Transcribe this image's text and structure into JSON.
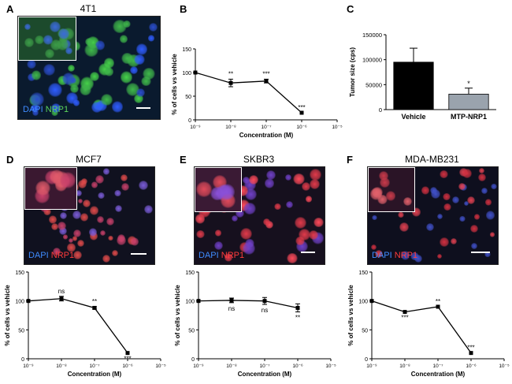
{
  "panels": {
    "A": {
      "letter": "A",
      "title": "4T1",
      "legend": [
        "DAPI",
        "NRP1"
      ],
      "legend_colors": [
        "#3f8cff",
        "#5cd65c"
      ]
    },
    "B": {
      "letter": "B"
    },
    "C": {
      "letter": "C"
    },
    "D": {
      "letter": "D",
      "title": "MCF7",
      "legend": [
        "DAPI",
        "NRP1"
      ],
      "legend_colors": [
        "#3f8cff",
        "#ff3b3b"
      ]
    },
    "E": {
      "letter": "E",
      "title": "SKBR3",
      "legend": [
        "DAPI",
        "NRP1"
      ],
      "legend_colors": [
        "#3f8cff",
        "#ff3b3b"
      ]
    },
    "F": {
      "letter": "F",
      "title": "MDA-MB231",
      "legend": [
        "DAPI",
        "NRP1"
      ],
      "legend_colors": [
        "#3f8cff",
        "#ff3b3b"
      ]
    }
  },
  "chart_data": [
    {
      "id": "B",
      "type": "line",
      "xlabel": "Concentration (M)",
      "ylabel": "% of cells vs vehicle",
      "x_log": true,
      "xlim": [
        1e-09,
        1e-05
      ],
      "xticks": [
        "10⁻⁹",
        "10⁻⁸",
        "10⁻⁷",
        "10⁻⁶",
        "10⁻⁵"
      ],
      "ylim": [
        0,
        150
      ],
      "yticks": [
        "0",
        "50",
        "100",
        "150"
      ],
      "series": [
        {
          "x": [
            1e-09,
            1e-08,
            1e-07,
            1e-06
          ],
          "y": [
            100,
            78,
            82,
            15
          ],
          "err": [
            0,
            8,
            4,
            0
          ],
          "labels": [
            "",
            "**",
            "***",
            "***"
          ]
        }
      ]
    },
    {
      "id": "C",
      "type": "bar",
      "ylabel": "Tumor size (cps)",
      "ylim": [
        0,
        150000
      ],
      "yticks": [
        "0",
        "50000",
        "100000",
        "150000"
      ],
      "categories": [
        "Vehicle",
        "MTP-NRP1"
      ],
      "values": [
        95000,
        31000
      ],
      "err": [
        28000,
        12000
      ],
      "colors": [
        "#000000",
        "#9aa3ad"
      ],
      "labels": [
        "",
        "*"
      ]
    },
    {
      "id": "D",
      "type": "line",
      "xlabel": "Concentration (M)",
      "ylabel": "% of cells vs vehicle",
      "x_log": true,
      "xlim": [
        1e-09,
        1e-05
      ],
      "xticks": [
        "10⁻⁹",
        "10⁻⁸",
        "10⁻⁷",
        "10⁻⁶",
        "10⁻⁵"
      ],
      "ylim": [
        0,
        150
      ],
      "yticks": [
        "0",
        "50",
        "100",
        "150"
      ],
      "series": [
        {
          "x": [
            1e-09,
            1e-08,
            1e-07,
            1e-06
          ],
          "y": [
            100,
            104,
            88,
            10
          ],
          "err": [
            0,
            4,
            2,
            0
          ],
          "labels": [
            "",
            "ns",
            "**",
            "***"
          ],
          "label_pos": [
            "",
            "above",
            "above",
            "below"
          ]
        }
      ]
    },
    {
      "id": "E",
      "type": "line",
      "xlabel": "Concentration (M)",
      "ylabel": "% of cells vs vehicle",
      "x_log": true,
      "xlim": [
        1e-09,
        1e-05
      ],
      "xticks": [
        "10⁻⁹",
        "10⁻⁸",
        "10⁻⁷",
        "10⁻⁶",
        "10⁻⁵"
      ],
      "ylim": [
        0,
        150
      ],
      "yticks": [
        "0",
        "50",
        "100",
        "150"
      ],
      "series": [
        {
          "x": [
            1e-09,
            1e-08,
            1e-07,
            1e-06
          ],
          "y": [
            100,
            101,
            100,
            88
          ],
          "err": [
            0,
            4,
            6,
            7
          ],
          "labels": [
            "",
            "ns",
            "ns",
            "**"
          ],
          "label_pos": [
            "",
            "below",
            "below",
            "below"
          ]
        }
      ]
    },
    {
      "id": "F",
      "type": "line",
      "xlabel": "Concentration (M)",
      "ylabel": "% of cells vs vehicle",
      "x_log": true,
      "xlim": [
        1e-09,
        1e-05
      ],
      "xticks": [
        "10⁻⁹",
        "10⁻⁸",
        "10⁻⁷",
        "10⁻⁶",
        "10⁻⁵"
      ],
      "ylim": [
        0,
        150
      ],
      "yticks": [
        "0",
        "50",
        "100",
        "150"
      ],
      "series": [
        {
          "x": [
            1e-09,
            1e-08,
            1e-07,
            1e-06
          ],
          "y": [
            100,
            81,
            90,
            10
          ],
          "err": [
            0,
            0,
            0,
            0
          ],
          "labels": [
            "",
            "***",
            "**",
            "***"
          ],
          "label_pos": [
            "",
            "below",
            "above",
            "above"
          ]
        }
      ]
    }
  ]
}
